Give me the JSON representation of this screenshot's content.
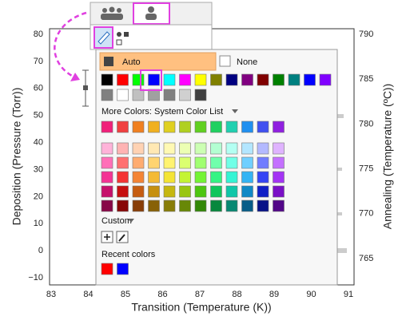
{
  "chart": {
    "x_axis_label": "Transition (Temperature (K))",
    "y_axis_label": "Deposition (Pressure (Torr))",
    "y2_axis_label": "Annealing (Temperature (ºC))",
    "x_ticks": [
      "83",
      "84",
      "85",
      "86",
      "87",
      "88",
      "89",
      "90",
      "91"
    ],
    "y_ticks": [
      "80",
      "70",
      "60",
      "50",
      "40",
      "30",
      "20",
      "10",
      "0",
      "−10"
    ],
    "y2_ticks": [
      "790",
      "785",
      "780",
      "775",
      "770",
      "765"
    ]
  },
  "picker": {
    "auto_label": "Auto",
    "none_label": "None",
    "basic_colors": [
      "#000000",
      "#ff0000",
      "#00ff00",
      "#0000ff",
      "#00ffff",
      "#ff00ff",
      "#ffff00",
      "#808000",
      "#000080",
      "#800080",
      "#800000",
      "#008000",
      "#008080",
      "#0000ff",
      "#8000ff"
    ],
    "basic_colors_2": [
      "#808080",
      "#ffffff",
      "#c0c0c0",
      "#a0a0a0",
      "#808080",
      "#d0d0d0",
      "#404040"
    ],
    "more_colors_label": "More Colors: System Color List",
    "system_colors": [
      "#f0207a",
      "#f04040",
      "#f08020",
      "#f0b020",
      "#e0d020",
      "#b0d020",
      "#60d020",
      "#20d060",
      "#20d0b0",
      "#2090f0",
      "#4050f0",
      "#9020e0"
    ],
    "custom_label": "Custom",
    "recent_label": "Recent colors",
    "recent_colors": [
      "#ff0000",
      "#0000ff"
    ]
  }
}
